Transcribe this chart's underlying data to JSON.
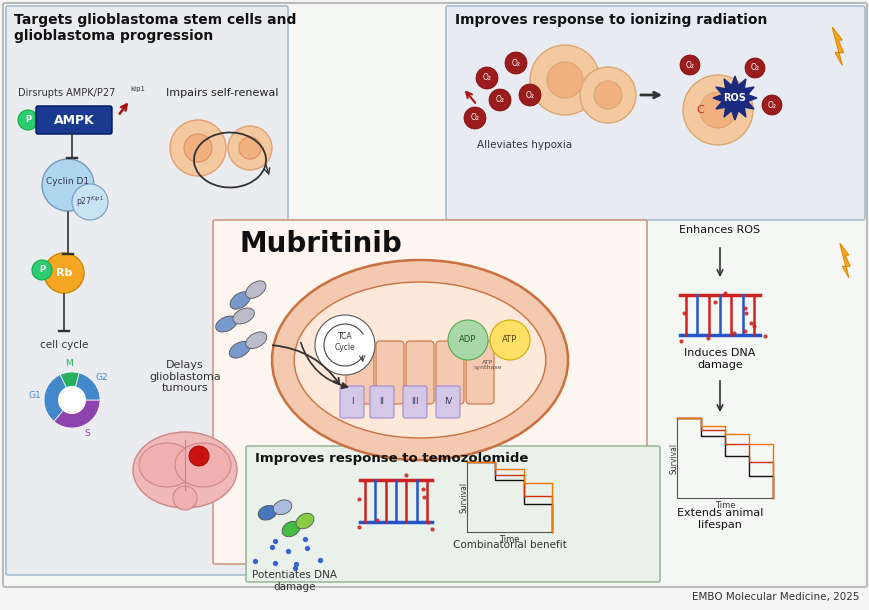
{
  "citation": "EMBO Molecular Medicine, 2025",
  "bg_color": "#f5f5f5",
  "box1_color": "#eaecf0",
  "box2_color": "#e8ecf2",
  "box3_color": "#eaf0ea",
  "center_color": "#fdf5f0",
  "box1_title": "Targets glioblastoma stem cells and\nglioblastoma progression",
  "box2_title": "Improves response to ionizing radiation",
  "box3_title": "Improves response to temozolomide",
  "center_label": "Mubritinib",
  "text_disrupts": "Dirsrupts AMPK/P27",
  "text_disrupts_super": "kip1",
  "text_impairs": "Impairs self-renewal",
  "text_alleviates": "Alleviates hypoxia",
  "text_enhances": "Enhances ROS",
  "text_induces": "Induces DNA\ndamage",
  "text_extends": "Extends animal\nlifespan",
  "text_delays": "Delays\nglioblastoma\ntumours",
  "text_potentiates": "Potentiates DNA\ndamage",
  "text_combinatorial": "Combinatorial benefit",
  "text_cell_cycle": "cell cycle",
  "ampk_color": "#1a3a8f",
  "rb_color": "#f5a623",
  "p_color": "#2ecc71",
  "cyclin_color": "#aed6f1",
  "g1_color": "#4488cc",
  "g2_color": "#4488cc",
  "s_color": "#8e44ad",
  "m_color": "#27ae60",
  "ros_color": "#1a2a7f",
  "o2_color": "#9b1c1c",
  "cell_color": "#f5c9a0",
  "lightning_color": "#f5a623",
  "dna_red": "#cc2222",
  "dna_blue": "#2255cc",
  "km_black": "#111111",
  "km_red": "#cc3300",
  "km_blue": "#4477cc",
  "km_orange": "#ee7700"
}
